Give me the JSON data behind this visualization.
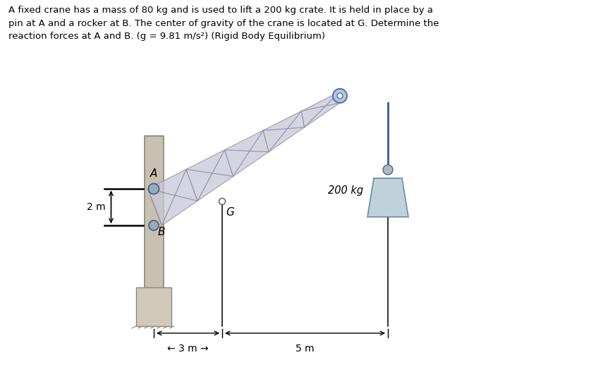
{
  "title_text": "A fixed crane has a mass of 80 kg and is used to lift a 200 kg crate. It is held in place by a\npin at A and a rocker at B. The center of gravity of the crane is located at G. Determine the\nreaction forces at A and B. (g = 9.81 m/s²) (Rigid Body Equilibrium)",
  "bg_color": "#ffffff",
  "post_color": "#c8c0b0",
  "post_edge": "#888878",
  "truss_fill": "#c8c8d8",
  "truss_edge": "#9090a8",
  "rope_color": "#3355aa",
  "crate_fill": "#b8ccd8",
  "crate_edge": "#6688aa",
  "pin_fill": "#99aabb",
  "pin_edge": "#446688",
  "rocker_fill": "#99aabb",
  "rocker_edge": "#446688",
  "wall_color": "#000000",
  "dim_color": "#000000",
  "label_color": "#000000",
  "A_label": "A",
  "B_label": "B",
  "G_label": "G",
  "mass_label": "200 kg",
  "dim_2m": "2 m",
  "dim_3m": "← 3 m →",
  "dim_5m": "5 m ———→",
  "label_fontsize": 11,
  "dim_fontsize": 10
}
